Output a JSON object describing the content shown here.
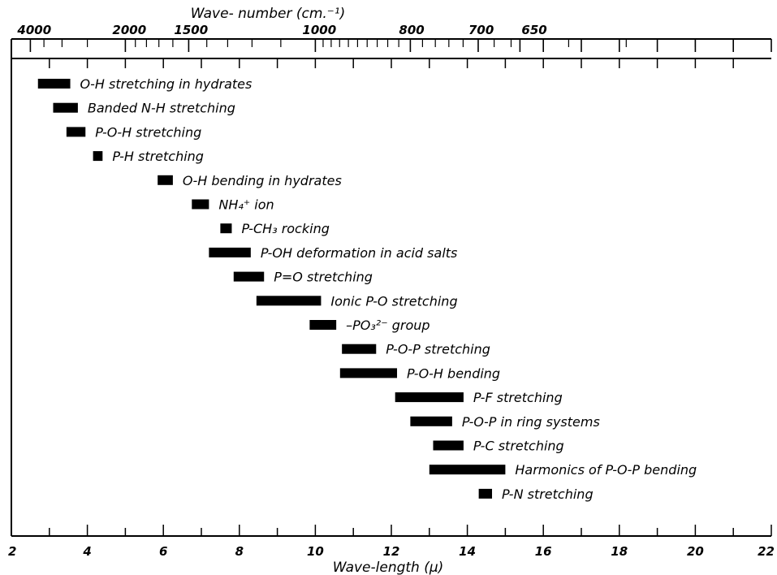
{
  "chart_data": {
    "type": "range-bar",
    "xlabel": "Wave-length (μ)",
    "xlabel_top": "Wave- number (cm.⁻¹)",
    "xlim": [
      2,
      22
    ],
    "x_ticks": [
      2,
      4,
      6,
      8,
      10,
      12,
      14,
      16,
      18,
      20,
      22
    ],
    "x_minor_step": 1,
    "top_ticks": [
      4000,
      2000,
      1500,
      1000,
      800,
      700,
      650
    ],
    "top_minor_ticks": [
      3500,
      3000,
      2500,
      1900,
      1800,
      1700,
      1600,
      1400,
      1300,
      1200,
      1100,
      980,
      960,
      940,
      920,
      900,
      880,
      860,
      840,
      820,
      780,
      760,
      740,
      720,
      680,
      660,
      600,
      550,
      500
    ],
    "grid": false,
    "ranges": [
      {
        "label": "O-H stretching in hydrates",
        "from": 2.7,
        "to": 3.55
      },
      {
        "label": "Banded N-H stretching",
        "from": 3.1,
        "to": 3.75
      },
      {
        "label": "P-O-H stretching",
        "from": 3.45,
        "to": 3.95
      },
      {
        "label": "P-H stretching",
        "from": 4.15,
        "to": 4.4
      },
      {
        "label": "O-H bending in hydrates",
        "from": 5.85,
        "to": 6.25
      },
      {
        "label": "NH₄⁺ ion",
        "from": 6.75,
        "to": 7.2
      },
      {
        "label": "P-CH₃ rocking",
        "from": 7.5,
        "to": 7.8
      },
      {
        "label": "P-OH deformation in acid salts",
        "from": 7.2,
        "to": 8.3
      },
      {
        "label": "P=O stretching",
        "from": 7.85,
        "to": 8.65
      },
      {
        "label": "Ionic P-O stretching",
        "from": 8.45,
        "to": 10.15
      },
      {
        "label": "–PO₃²⁻ group",
        "from": 9.85,
        "to": 10.55
      },
      {
        "label": "P-O-P stretching",
        "from": 10.7,
        "to": 11.6
      },
      {
        "label": "P-O-H bending",
        "from": 10.65,
        "to": 12.15
      },
      {
        "label": "P-F stretching",
        "from": 12.1,
        "to": 13.9
      },
      {
        "label": "P-O-P in ring systems",
        "from": 12.5,
        "to": 13.6
      },
      {
        "label": "P-C stretching",
        "from": 13.1,
        "to": 13.9
      },
      {
        "label": "Harmonics of P-O-P bending",
        "from": 13.0,
        "to": 15.0
      },
      {
        "label": "P-N stretching",
        "from": 14.3,
        "to": 14.65
      }
    ]
  }
}
